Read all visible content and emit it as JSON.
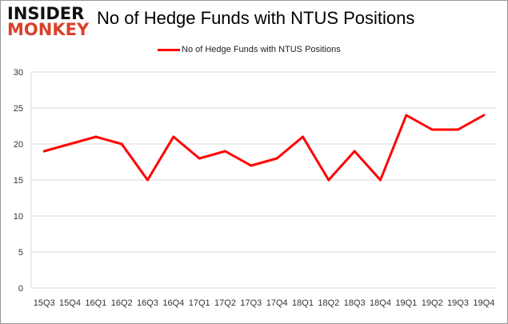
{
  "logo": {
    "line1": "INSIDER",
    "line2": "MONKEY"
  },
  "chart_data": {
    "type": "line",
    "title": "No of Hedge Funds with NTUS Positions",
    "xlabel": "",
    "ylabel": "",
    "categories": [
      "15Q3",
      "15Q4",
      "16Q1",
      "16Q2",
      "16Q3",
      "16Q4",
      "17Q1",
      "17Q2",
      "17Q3",
      "17Q4",
      "18Q1",
      "18Q2",
      "18Q3",
      "18Q4",
      "19Q1",
      "19Q2",
      "19Q3",
      "19Q4"
    ],
    "series": [
      {
        "name": "No of Hedge Funds with NTUS Positions",
        "color": "#ff0000",
        "values": [
          19,
          20,
          21,
          20,
          15,
          21,
          18,
          19,
          17,
          18,
          21,
          15,
          19,
          15,
          24,
          22,
          22,
          24
        ]
      }
    ],
    "ylim": [
      0,
      30
    ],
    "yticks": [
      0,
      5,
      10,
      15,
      20,
      25,
      30
    ],
    "grid": true,
    "legend": "top"
  }
}
